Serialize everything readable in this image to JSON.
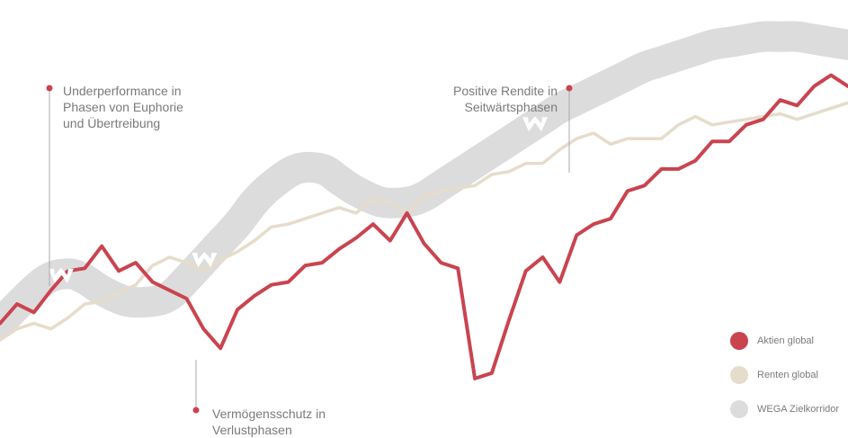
{
  "chart_data": {
    "type": "line",
    "title": "",
    "xlabel": "",
    "ylabel": "",
    "grid": false,
    "legend_position": "bottom-right",
    "x": [
      0,
      2,
      4,
      6,
      8,
      10,
      12,
      14,
      16,
      18,
      20,
      22,
      24,
      26,
      28,
      30,
      32,
      34,
      36,
      38,
      40,
      42,
      44,
      46,
      48,
      50,
      52,
      54,
      56,
      58,
      60,
      62,
      64,
      66,
      68,
      70,
      72,
      74,
      76,
      78,
      80,
      82,
      84,
      86,
      88,
      90,
      92,
      94,
      96,
      98,
      100
    ],
    "series": [
      {
        "name": "Aktien global",
        "color": "#c9444f",
        "values": [
          36,
          43,
          40,
          48,
          55,
          56,
          64,
          55,
          58,
          51,
          48,
          45,
          34,
          27,
          41,
          46,
          50,
          51,
          57,
          58,
          63,
          67,
          72,
          66,
          76,
          65,
          58,
          56,
          16,
          18,
          37,
          55,
          60,
          51,
          68,
          72,
          74,
          84,
          86,
          92,
          92,
          95,
          102,
          102,
          108,
          110,
          117,
          115,
          122,
          126,
          122
        ]
      },
      {
        "name": "Renten global",
        "color": "#e6dccb",
        "values": [
          30,
          34,
          36,
          34,
          38,
          43,
          44,
          47,
          50,
          57,
          60,
          58,
          55,
          59,
          62,
          66,
          71,
          72,
          74,
          76,
          78,
          76,
          81,
          80,
          76,
          82,
          84,
          85,
          86,
          90,
          91,
          94,
          94,
          99,
          103,
          105,
          101,
          103,
          103,
          103,
          108,
          111,
          108,
          109,
          110,
          111,
          112,
          110,
          112,
          114,
          116
        ]
      }
    ],
    "corridor": {
      "name": "WEGA Zielkorridor",
      "color": "#dcdcdc",
      "x": [
        0,
        5,
        8,
        10,
        12,
        15,
        18,
        20,
        22,
        25,
        28,
        30,
        32,
        35,
        38,
        40,
        42,
        45,
        48,
        50,
        52,
        54,
        56,
        58,
        60,
        62,
        64,
        66,
        68,
        70,
        72,
        74,
        76,
        78,
        80,
        82,
        84,
        86,
        88,
        90,
        92,
        94,
        96,
        98,
        100
      ],
      "values": [
        36,
        51,
        54,
        52,
        48,
        44,
        44,
        46,
        52,
        62,
        72,
        80,
        86,
        92,
        92,
        88,
        84,
        80,
        80,
        82,
        86,
        90,
        94,
        98,
        102,
        106,
        110,
        114,
        117,
        120,
        123,
        126,
        129,
        131,
        133,
        135,
        137,
        138,
        139,
        140,
        140,
        140,
        139,
        138,
        137
      ]
    },
    "annotations": [
      {
        "text": "Underperformance in Phasen von Euphorie und Übertreibung"
      },
      {
        "text": "Vermögensschutz in Verlustphasen"
      },
      {
        "text": "Positive Rendite in Seitwärtsphasen"
      }
    ],
    "legend": [
      {
        "label": "Aktien global",
        "color": "#c9444f"
      },
      {
        "label": "Renten global",
        "color": "#e6dccb"
      },
      {
        "label": "WEGA Zielkorridor",
        "color": "#dcdcdc"
      }
    ],
    "ylim": [
      0,
      150
    ]
  }
}
